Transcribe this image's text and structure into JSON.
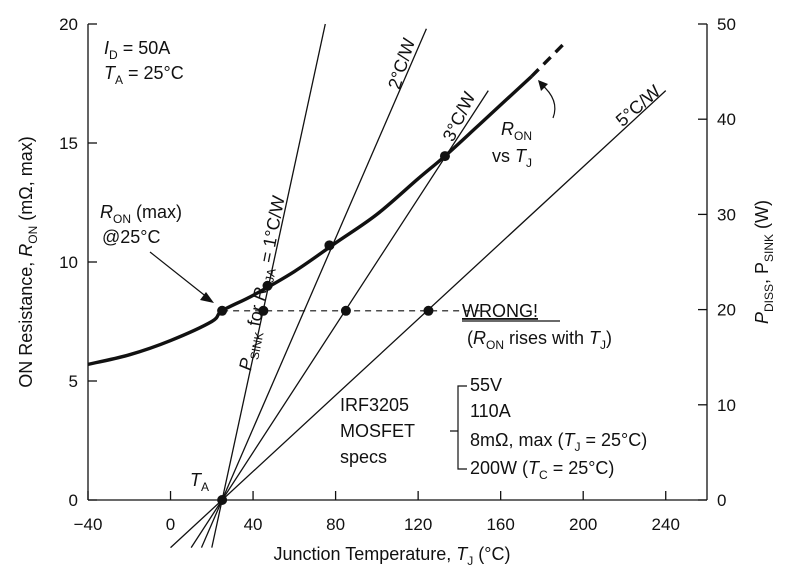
{
  "chart_data": {
    "type": "line",
    "x_axis": {
      "label_main": "Junction Temperature, ",
      "label_var": "T",
      "label_sub": "J",
      "label_unit": " (°C)",
      "min": -40,
      "max": 260,
      "ticks": [
        -40,
        0,
        40,
        80,
        120,
        160,
        200,
        240
      ],
      "tick_labels": [
        "−40",
        "0",
        "40",
        "80",
        "120",
        "160",
        "200",
        "240"
      ]
    },
    "y_left": {
      "label_main": "ON Resistance, ",
      "label_var": "R",
      "label_sub": "ON",
      "label_unit": " (mΩ, max)",
      "min": 0,
      "max": 20,
      "ticks": [
        0,
        5,
        10,
        15,
        20
      ],
      "tick_labels": [
        "0",
        "5",
        "10",
        "15",
        "20"
      ]
    },
    "y_right": {
      "label_p": "P",
      "label_sub1": "DISS",
      "label_mid": ", P",
      "label_sub2": "SINK",
      "label_unit": " (W)",
      "min": 0,
      "max": 50,
      "ticks": [
        0,
        10,
        20,
        30,
        40,
        50
      ],
      "tick_labels": [
        "0",
        "10",
        "20",
        "30",
        "40",
        "50"
      ]
    },
    "ron_curve": {
      "name_var": "R",
      "name_sub": "ON",
      "name_vs": "vs ",
      "name_t": "T",
      "name_tsub": "J",
      "x": [
        -40,
        -20,
        0,
        20,
        25,
        40,
        60,
        80,
        100,
        120,
        133,
        150,
        175
      ],
      "y": [
        5.7,
        6.1,
        6.7,
        7.5,
        7.95,
        8.6,
        9.6,
        10.8,
        12.0,
        13.5,
        14.45,
        15.8,
        17.8
      ],
      "dashed_x": [
        175,
        191
      ],
      "dashed_y": [
        17.8,
        19.2
      ]
    },
    "sink_lines": [
      {
        "label": "1°C/W",
        "theta": 1,
        "prefix_p": "P",
        "prefix_sub": "SINK",
        "prefix_for": " for ",
        "prefix_r": "R",
        "prefix_rsub": "θJA",
        "prefix_eq": " = "
      },
      {
        "label": "2°C/W",
        "theta": 2
      },
      {
        "label": "3°C/W",
        "theta": 3
      },
      {
        "label": "5°C/W",
        "theta": 5
      }
    ],
    "ambient_c": 25,
    "intersections": [
      {
        "x": 47,
        "y": 9.0
      },
      {
        "x": 77,
        "y": 10.7
      },
      {
        "x": 133,
        "y": 14.45
      }
    ],
    "wrong_points": [
      {
        "x": 25,
        "y": 7.95
      },
      {
        "x": 45,
        "y": 7.95
      },
      {
        "x": 85,
        "y": 7.95
      },
      {
        "x": 125,
        "y": 7.95
      }
    ],
    "wrong_line_x": [
      25,
      150
    ],
    "annotations": {
      "conditions_id_var": "I",
      "conditions_id_sub": "D",
      "conditions_id_val": " = 50A",
      "conditions_ta_var": "T",
      "conditions_ta_sub": "A",
      "conditions_ta_val": " = 25°C",
      "ron_max_var": "R",
      "ron_max_sub": "ON",
      "ron_max_rest": " (max)",
      "ron_max_line2": "@25°C",
      "wrong_title": "WRONG!",
      "wrong_open": "(",
      "wrong_var": "R",
      "wrong_sub": "ON",
      "wrong_mid": " rises with ",
      "wrong_t": "T",
      "wrong_tsub": "J",
      "wrong_close": ")",
      "ta_var": "T",
      "ta_sub": "A",
      "specs_left": [
        "IRF3205",
        "MOSFET",
        "specs"
      ],
      "spec_55v": "55V",
      "spec_110a": "110A",
      "spec_8m": "8mΩ, max (",
      "spec_8m_t": "T",
      "spec_8m_sub": "J",
      "spec_8m_end": " = 25°C)",
      "spec_200w": "200W (",
      "spec_200w_t": "T",
      "spec_200w_sub": "C",
      "spec_200w_end": " = 25°C)"
    }
  }
}
